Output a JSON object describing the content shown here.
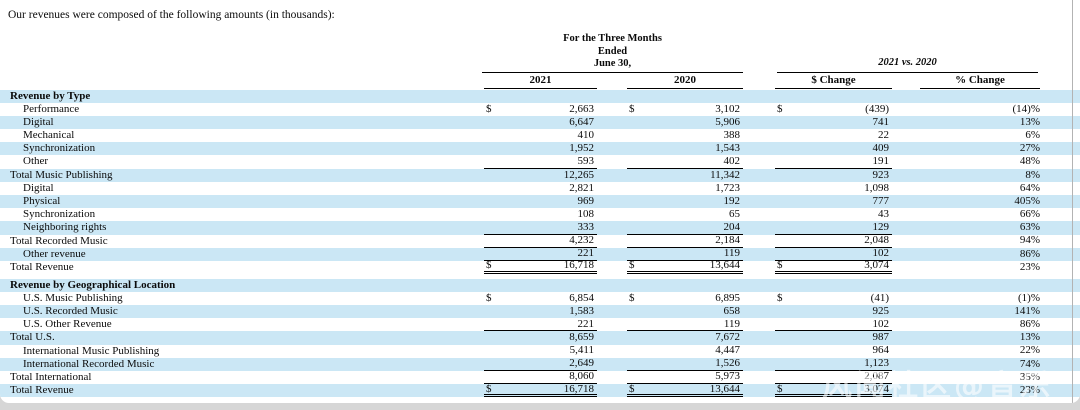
{
  "intro": "Our revenues were composed of the following amounts (in thousands):",
  "header": {
    "period": "For the Three Months\nEnded\nJune 30,",
    "comparison": "2021 vs. 2020",
    "col_2021": "2021",
    "col_2020": "2020",
    "col_dollar_change": "$ Change",
    "col_percent_change": "% Change"
  },
  "watermark": "风闻社区@音乐",
  "colors": {
    "row_band": "#cbe7f5",
    "page_bg": "#ffffff",
    "bottom_strip": "#d6d6d6",
    "rule": "#000000"
  },
  "table": {
    "rows": [
      {
        "label": "Revenue by Type",
        "section": true,
        "indent": false
      },
      {
        "label": "Performance",
        "indent": true,
        "dollar": true,
        "v2021": "2,663",
        "v2020": "3,102",
        "chg": "(439)",
        "pct": "(14)%",
        "rule": "none"
      },
      {
        "label": "Digital",
        "indent": true,
        "dollar": false,
        "v2021": "6,647",
        "v2020": "5,906",
        "chg": "741",
        "pct": "13%",
        "rule": "none"
      },
      {
        "label": "Mechanical",
        "indent": true,
        "dollar": false,
        "v2021": "410",
        "v2020": "388",
        "chg": "22",
        "pct": "6%",
        "rule": "none"
      },
      {
        "label": "Synchronization",
        "indent": true,
        "dollar": false,
        "v2021": "1,952",
        "v2020": "1,543",
        "chg": "409",
        "pct": "27%",
        "rule": "none"
      },
      {
        "label": "Other",
        "indent": true,
        "dollar": false,
        "v2021": "593",
        "v2020": "402",
        "chg": "191",
        "pct": "48%",
        "rule": "single"
      },
      {
        "label": "Total Music Publishing",
        "indent": false,
        "dollar": false,
        "v2021": "12,265",
        "v2020": "11,342",
        "chg": "923",
        "pct": "8%",
        "rule": "none"
      },
      {
        "label": "Digital",
        "indent": true,
        "dollar": false,
        "v2021": "2,821",
        "v2020": "1,723",
        "chg": "1,098",
        "pct": "64%",
        "rule": "none"
      },
      {
        "label": "Physical",
        "indent": true,
        "dollar": false,
        "v2021": "969",
        "v2020": "192",
        "chg": "777",
        "pct": "405%",
        "rule": "none"
      },
      {
        "label": "Synchronization",
        "indent": true,
        "dollar": false,
        "v2021": "108",
        "v2020": "65",
        "chg": "43",
        "pct": "66%",
        "rule": "none"
      },
      {
        "label": "Neighboring rights",
        "indent": true,
        "dollar": false,
        "v2021": "333",
        "v2020": "204",
        "chg": "129",
        "pct": "63%",
        "rule": "single"
      },
      {
        "label": "Total Recorded Music",
        "indent": false,
        "dollar": false,
        "v2021": "4,232",
        "v2020": "2,184",
        "chg": "2,048",
        "pct": "94%",
        "rule": "single"
      },
      {
        "label": "Other revenue",
        "indent": true,
        "dollar": false,
        "v2021": "221",
        "v2020": "119",
        "chg": "102",
        "pct": "86%",
        "rule": "single"
      },
      {
        "label": "Total Revenue",
        "indent": false,
        "dollar": true,
        "v2021": "16,718",
        "v2020": "13,644",
        "chg": "3,074",
        "pct": "23%",
        "rule": "double"
      },
      {
        "label": "Revenue by Geographical Location",
        "section": true,
        "indent": false,
        "gap": true
      },
      {
        "label": "U.S. Music Publishing",
        "indent": true,
        "dollar": true,
        "v2021": "6,854",
        "v2020": "6,895",
        "chg": "(41)",
        "pct": "(1)%",
        "rule": "none"
      },
      {
        "label": "U.S. Recorded Music",
        "indent": true,
        "dollar": false,
        "v2021": "1,583",
        "v2020": "658",
        "chg": "925",
        "pct": "141%",
        "rule": "none"
      },
      {
        "label": "U.S. Other Revenue",
        "indent": true,
        "dollar": false,
        "v2021": "221",
        "v2020": "119",
        "chg": "102",
        "pct": "86%",
        "rule": "single"
      },
      {
        "label": "Total U.S.",
        "indent": false,
        "dollar": false,
        "v2021": "8,659",
        "v2020": "7,672",
        "chg": "987",
        "pct": "13%",
        "rule": "none"
      },
      {
        "label": "International Music Publishing",
        "indent": true,
        "dollar": false,
        "v2021": "5,411",
        "v2020": "4,447",
        "chg": "964",
        "pct": "22%",
        "rule": "none"
      },
      {
        "label": "International Recorded Music",
        "indent": true,
        "dollar": false,
        "v2021": "2,649",
        "v2020": "1,526",
        "chg": "1,123",
        "pct": "74%",
        "rule": "single"
      },
      {
        "label": "Total International",
        "indent": false,
        "dollar": false,
        "v2021": "8,060",
        "v2020": "5,973",
        "chg": "2,087",
        "pct": "35%",
        "rule": "single"
      },
      {
        "label": "Total Revenue",
        "indent": false,
        "dollar": true,
        "v2021": "16,718",
        "v2020": "13,644",
        "chg": "3,074",
        "pct": "23%",
        "rule": "double"
      }
    ]
  }
}
